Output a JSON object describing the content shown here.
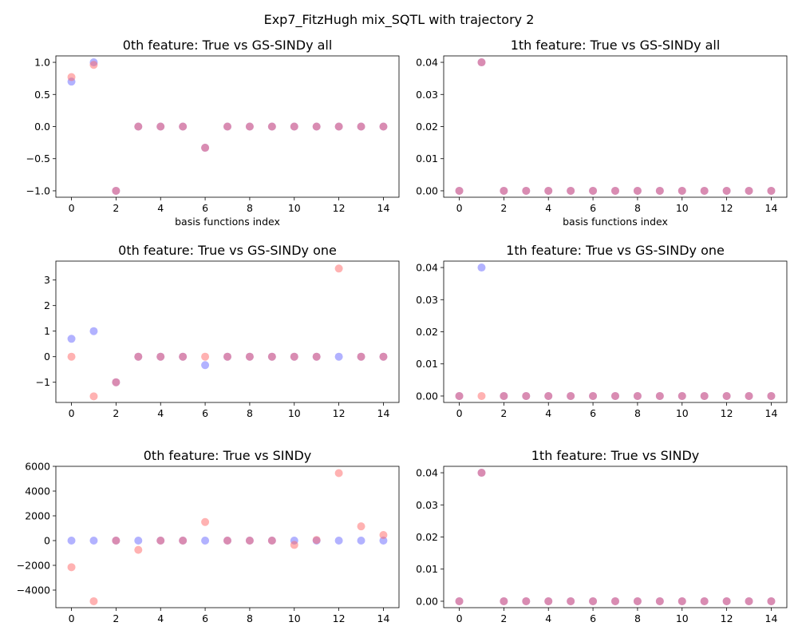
{
  "figure": {
    "suptitle": "Exp7_FitzHugh mix_SQTL with trajectory 2",
    "colors": {
      "true_series": "#6666ff",
      "pred_series": "#ff6666",
      "overlap": "#a6569a"
    }
  },
  "chart_data": [
    {
      "type": "scatter",
      "title": "0th feature: True vs GS-SINDy all",
      "xlabel": "basis functions index",
      "ylabel": "",
      "x": [
        0,
        1,
        2,
        3,
        4,
        5,
        6,
        7,
        8,
        9,
        10,
        11,
        12,
        13,
        14
      ],
      "xticks": [
        0,
        2,
        4,
        6,
        8,
        10,
        12,
        14
      ],
      "xlim": [
        -0.7,
        14.7
      ],
      "yticks": [
        -1.0,
        -0.5,
        0.0,
        0.5,
        1.0
      ],
      "ytick_labels": [
        "−1.0",
        "−0.5",
        "0.0",
        "0.5",
        "1.0"
      ],
      "ylim": [
        -1.1,
        1.1
      ],
      "grid": false,
      "series": [
        {
          "role": "true",
          "values": [
            0.7,
            1.0,
            -1.0,
            0,
            0,
            0,
            -0.33,
            0,
            0,
            0,
            0,
            0,
            0,
            0,
            0
          ]
        },
        {
          "role": "predicted",
          "values": [
            0.77,
            0.96,
            -1.0,
            0,
            0,
            0,
            -0.33,
            0,
            0,
            0,
            0,
            0,
            0,
            0,
            0
          ]
        }
      ]
    },
    {
      "type": "scatter",
      "title": "1th feature: True vs GS-SINDy all",
      "xlabel": "basis functions index",
      "ylabel": "",
      "x": [
        0,
        1,
        2,
        3,
        4,
        5,
        6,
        7,
        8,
        9,
        10,
        11,
        12,
        13,
        14
      ],
      "xticks": [
        0,
        2,
        4,
        6,
        8,
        10,
        12,
        14
      ],
      "xlim": [
        -0.7,
        14.7
      ],
      "yticks": [
        0.0,
        0.01,
        0.02,
        0.03,
        0.04
      ],
      "ytick_labels": [
        "0.00",
        "0.01",
        "0.02",
        "0.03",
        "0.04"
      ],
      "ylim": [
        -0.002,
        0.042
      ],
      "grid": false,
      "series": [
        {
          "role": "true",
          "values": [
            0,
            0.04,
            0,
            0,
            0,
            0,
            0,
            0,
            0,
            0,
            0,
            0,
            0,
            0,
            0
          ]
        },
        {
          "role": "predicted",
          "values": [
            0,
            0.04,
            0,
            0,
            0,
            0,
            0,
            0,
            0,
            0,
            0,
            0,
            0,
            0,
            0
          ]
        }
      ]
    },
    {
      "type": "scatter",
      "title": "0th feature: True vs GS-SINDy one",
      "xlabel": "",
      "ylabel": "",
      "x": [
        0,
        1,
        2,
        3,
        4,
        5,
        6,
        7,
        8,
        9,
        10,
        11,
        12,
        13,
        14
      ],
      "xticks": [
        0,
        2,
        4,
        6,
        8,
        10,
        12,
        14
      ],
      "xlim": [
        -0.7,
        14.7
      ],
      "yticks": [
        -1,
        0,
        1,
        2,
        3
      ],
      "ytick_labels": [
        "−1",
        "0",
        "1",
        "2",
        "3"
      ],
      "ylim": [
        -1.79,
        3.74
      ],
      "grid": false,
      "series": [
        {
          "role": "true",
          "values": [
            0.7,
            1.0,
            -1.0,
            0,
            0,
            0,
            -0.33,
            0,
            0,
            0,
            0,
            0,
            0,
            0,
            0
          ]
        },
        {
          "role": "predicted",
          "values": [
            0,
            -1.55,
            -1.0,
            0,
            0,
            0,
            0,
            0,
            0,
            0,
            0,
            0,
            3.45,
            0,
            0
          ]
        }
      ]
    },
    {
      "type": "scatter",
      "title": "1th feature: True vs GS-SINDy one",
      "xlabel": "",
      "ylabel": "",
      "x": [
        0,
        1,
        2,
        3,
        4,
        5,
        6,
        7,
        8,
        9,
        10,
        11,
        12,
        13,
        14
      ],
      "xticks": [
        0,
        2,
        4,
        6,
        8,
        10,
        12,
        14
      ],
      "xlim": [
        -0.7,
        14.7
      ],
      "yticks": [
        0.0,
        0.01,
        0.02,
        0.03,
        0.04
      ],
      "ytick_labels": [
        "0.00",
        "0.01",
        "0.02",
        "0.03",
        "0.04"
      ],
      "ylim": [
        -0.002,
        0.042
      ],
      "grid": false,
      "series": [
        {
          "role": "true",
          "values": [
            0,
            0.04,
            0,
            0,
            0,
            0,
            0,
            0,
            0,
            0,
            0,
            0,
            0,
            0,
            0
          ]
        },
        {
          "role": "predicted",
          "values": [
            0,
            0,
            0,
            0,
            0,
            0,
            0,
            0,
            0,
            0,
            0,
            0,
            0,
            0,
            0
          ]
        }
      ]
    },
    {
      "type": "scatter",
      "title": "0th feature: True vs SINDy",
      "xlabel": "",
      "ylabel": "",
      "x": [
        0,
        1,
        2,
        3,
        4,
        5,
        6,
        7,
        8,
        9,
        10,
        11,
        12,
        13,
        14
      ],
      "xticks": [
        0,
        2,
        4,
        6,
        8,
        10,
        12,
        14
      ],
      "xlim": [
        -0.7,
        14.7
      ],
      "yticks": [
        -4000,
        -2000,
        0,
        2000,
        4000,
        6000
      ],
      "ytick_labels": [
        "−4000",
        "−2000",
        "0",
        "2000",
        "4000",
        "6000"
      ],
      "ylim": [
        -5420,
        6000
      ],
      "grid": false,
      "series": [
        {
          "role": "true",
          "values": [
            0.7,
            1.0,
            -1.0,
            0,
            0,
            0,
            -0.33,
            0,
            0,
            0,
            0,
            0,
            0,
            0,
            0
          ]
        },
        {
          "role": "predicted",
          "values": [
            -2150,
            -4900,
            0,
            -750,
            0,
            0,
            1500,
            0,
            0,
            0,
            -350,
            50,
            5450,
            1150,
            450
          ]
        }
      ]
    },
    {
      "type": "scatter",
      "title": "1th feature: True vs SINDy",
      "xlabel": "",
      "ylabel": "",
      "x": [
        0,
        1,
        2,
        3,
        4,
        5,
        6,
        7,
        8,
        9,
        10,
        11,
        12,
        13,
        14
      ],
      "xticks": [
        0,
        2,
        4,
        6,
        8,
        10,
        12,
        14
      ],
      "xlim": [
        -0.7,
        14.7
      ],
      "yticks": [
        0.0,
        0.01,
        0.02,
        0.03,
        0.04
      ],
      "ytick_labels": [
        "0.00",
        "0.01",
        "0.02",
        "0.03",
        "0.04"
      ],
      "ylim": [
        -0.002,
        0.042
      ],
      "grid": false,
      "series": [
        {
          "role": "true",
          "values": [
            0,
            0.04,
            0,
            0,
            0,
            0,
            0,
            0,
            0,
            0,
            0,
            0,
            0,
            0,
            0
          ]
        },
        {
          "role": "predicted",
          "values": [
            0,
            0.04,
            0,
            0,
            0,
            0,
            0,
            0,
            0,
            0,
            0,
            0,
            0,
            0,
            0
          ]
        }
      ]
    }
  ]
}
